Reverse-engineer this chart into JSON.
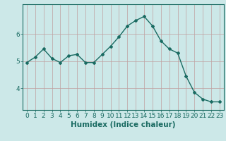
{
  "x": [
    0,
    1,
    2,
    3,
    4,
    5,
    6,
    7,
    8,
    9,
    10,
    11,
    12,
    13,
    14,
    15,
    16,
    17,
    18,
    19,
    20,
    21,
    22,
    23
  ],
  "y": [
    4.95,
    5.15,
    5.45,
    5.1,
    4.95,
    5.2,
    5.25,
    4.95,
    4.95,
    5.25,
    5.55,
    5.9,
    6.3,
    6.5,
    6.65,
    6.3,
    5.75,
    5.45,
    5.3,
    4.45,
    3.85,
    3.6,
    3.5,
    3.5
  ],
  "line_color": "#1a6b62",
  "marker": "D",
  "marker_size": 2,
  "bg_color": "#cce8e8",
  "grid_color": "#c0a0a0",
  "xlabel": "Humidex (Indice chaleur)",
  "ylim": [
    3.2,
    7.1
  ],
  "xlim": [
    -0.5,
    23.5
  ],
  "yticks": [
    4,
    5,
    6
  ],
  "xticks": [
    0,
    1,
    2,
    3,
    4,
    5,
    6,
    7,
    8,
    9,
    10,
    11,
    12,
    13,
    14,
    15,
    16,
    17,
    18,
    19,
    20,
    21,
    22,
    23
  ],
  "tick_label_fontsize": 6.5,
  "xlabel_fontsize": 7.5,
  "tick_color": "#1a6b62",
  "axis_color": "#1a6b62"
}
